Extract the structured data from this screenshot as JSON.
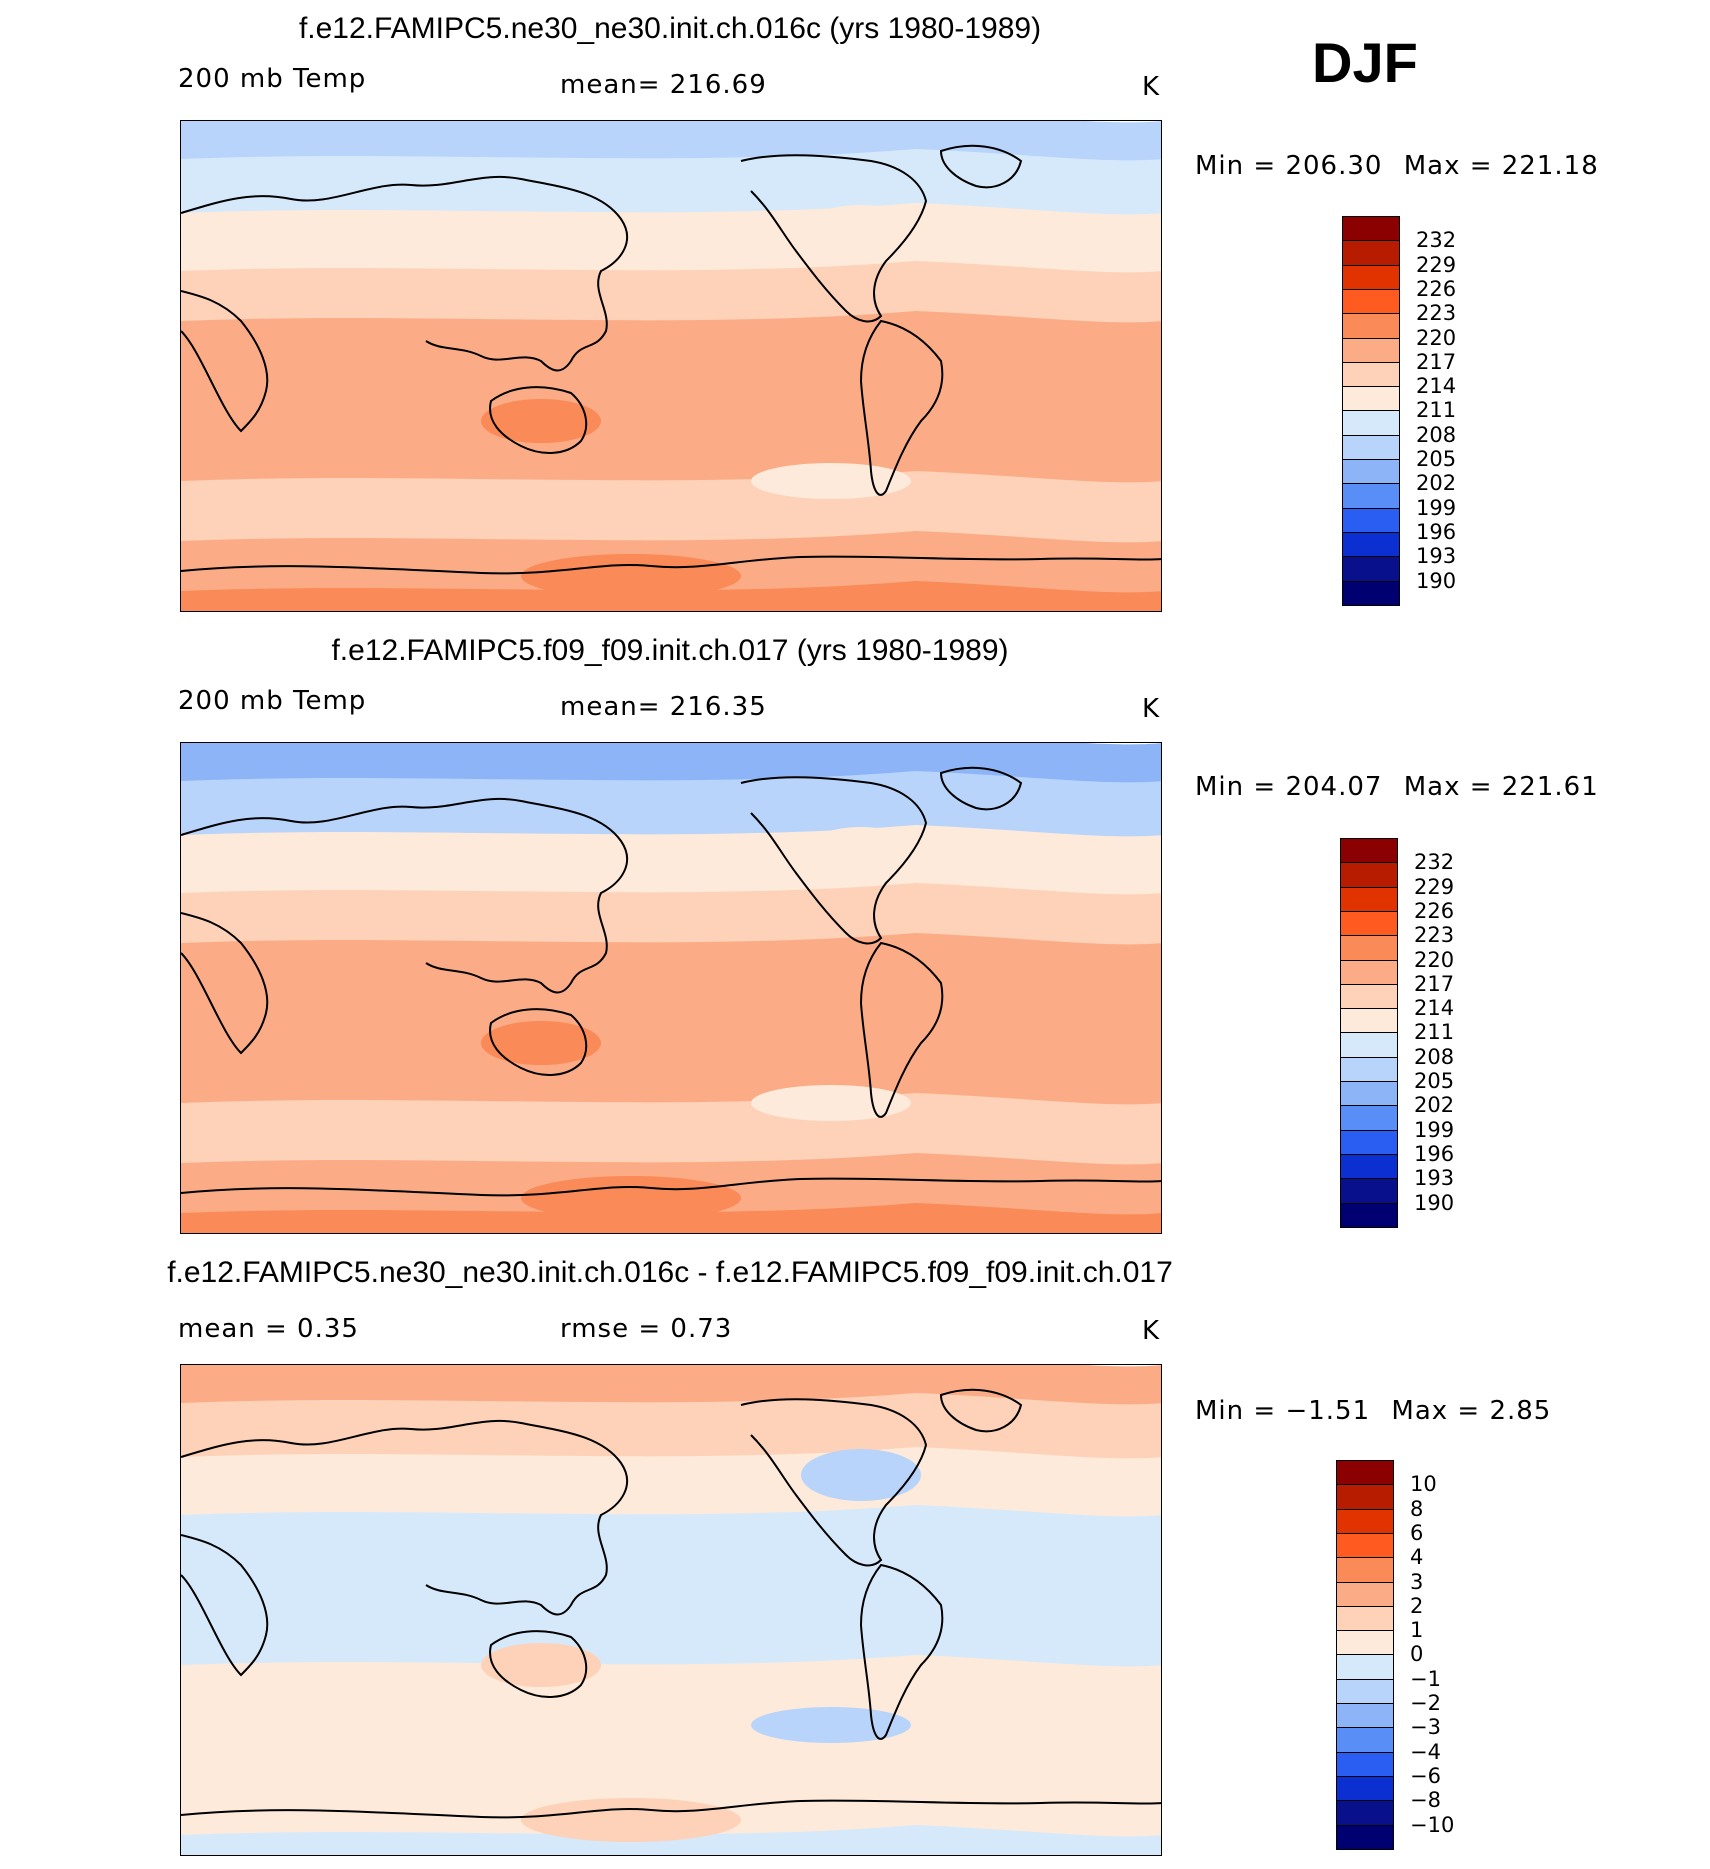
{
  "season": "DJF",
  "panels": [
    {
      "title": "f.e12.FAMIPC5.ne30_ne30.init.ch.016c (yrs 1980-1989)",
      "left_label": "200 mb Temp",
      "center_label": "mean=  216.69",
      "right_label": "K",
      "min_label": "Min  =  206.30",
      "max_label": "Max  =  221.18",
      "colorbar": {
        "levels": [
          "232",
          "229",
          "226",
          "223",
          "220",
          "217",
          "214",
          "211",
          "208",
          "205",
          "202",
          "199",
          "196",
          "193",
          "190"
        ],
        "colors": [
          "#8b0000",
          "#b81c00",
          "#e03300",
          "#ff5a1f",
          "#fa8a57",
          "#fbac86",
          "#fdd2b8",
          "#fdeada",
          "#d6e9fb",
          "#b8d4fb",
          "#8cb4f7",
          "#5a8ef7",
          "#2a5df2",
          "#0b2fd1",
          "#08108c",
          "#000070"
        ]
      },
      "map": {
        "band_colors_north_to_south": [
          "#b8d4fb",
          "#d6e9fb",
          "#fdeada",
          "#fdd2b8",
          "#fbac86",
          "#fbac86",
          "#fdd2b8",
          "#fbac86",
          "#fa8a57"
        ],
        "feature_colors": [
          "#fa8a57",
          "#fdeada"
        ]
      }
    },
    {
      "title": "f.e12.FAMIPC5.f09_f09.init.ch.017 (yrs 1980-1989)",
      "left_label": "200 mb Temp",
      "center_label": "mean=  216.35",
      "right_label": "K",
      "min_label": "Min  =  204.07",
      "max_label": "Max  =  221.61",
      "colorbar": {
        "levels": [
          "232",
          "229",
          "226",
          "223",
          "220",
          "217",
          "214",
          "211",
          "208",
          "205",
          "202",
          "199",
          "196",
          "193",
          "190"
        ],
        "colors": [
          "#8b0000",
          "#b81c00",
          "#e03300",
          "#ff5a1f",
          "#fa8a57",
          "#fbac86",
          "#fdd2b8",
          "#fdeada",
          "#d6e9fb",
          "#b8d4fb",
          "#8cb4f7",
          "#5a8ef7",
          "#2a5df2",
          "#0b2fd1",
          "#08108c",
          "#000070"
        ]
      },
      "map": {
        "band_colors_north_to_south": [
          "#8cb4f7",
          "#b8d4fb",
          "#fdeada",
          "#fdd2b8",
          "#fbac86",
          "#fbac86",
          "#fdd2b8",
          "#fbac86",
          "#fa8a57"
        ],
        "feature_colors": [
          "#fa8a57",
          "#fdeada"
        ]
      }
    },
    {
      "title": "f.e12.FAMIPC5.ne30_ne30.init.ch.016c - f.e12.FAMIPC5.f09_f09.init.ch.017",
      "left_label": "mean =     0.35",
      "center_label": "rmse =     0.73",
      "right_label": "K",
      "min_label": "Min  =   −1.51",
      "max_label": "Max  =     2.85",
      "colorbar": {
        "levels": [
          "10",
          "8",
          "6",
          "4",
          "3",
          "2",
          "1",
          "0",
          "−1",
          "−2",
          "−3",
          "−4",
          "−6",
          "−8",
          "−10"
        ],
        "colors": [
          "#8b0000",
          "#b81c00",
          "#e03300",
          "#ff5a1f",
          "#fa8a57",
          "#fbac86",
          "#fdd2b8",
          "#fdeada",
          "#d6e9fb",
          "#b8d4fb",
          "#8cb4f7",
          "#5a8ef7",
          "#2a5df2",
          "#0b2fd1",
          "#08108c",
          "#000070"
        ]
      },
      "map": {
        "band_colors_north_to_south": [
          "#fbac86",
          "#fdd2b8",
          "#fdeada",
          "#d6e9fb",
          "#d6e9fb",
          "#fdeada",
          "#fdeada",
          "#fdeada",
          "#d6e9fb"
        ],
        "feature_colors": [
          "#fdd2b8",
          "#b8d4fb"
        ]
      }
    }
  ]
}
